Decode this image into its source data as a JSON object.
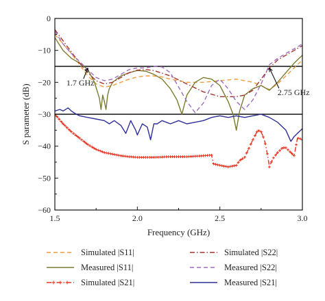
{
  "chart_data": {
    "type": "line",
    "xlabel": "Frequency (GHz)",
    "ylabel": "S parameter (dB)",
    "xlim": [
      1.5,
      3.0
    ],
    "ylim": [
      -60,
      0
    ],
    "xticks": [
      1.5,
      2.0,
      2.5,
      3.0
    ],
    "xtick_labels": [
      "1.5",
      "2.0",
      "2.5",
      "3.0"
    ],
    "yticks": [
      0,
      -10,
      -20,
      -30,
      -40,
      -50,
      -60
    ],
    "ytick_labels": [
      "0",
      "−10",
      "−20",
      "−30",
      "−40",
      "−50",
      "−60"
    ],
    "grid": false,
    "legend_position": "bottom",
    "reference_lines": [
      -15,
      -30
    ],
    "annotations": [
      {
        "text": "1.7 GHz",
        "x": 1.7,
        "y": -15.5,
        "text_x": 1.57,
        "text_y": -21
      },
      {
        "text": "2.75 GHz",
        "x": 2.8,
        "y": -15.5,
        "text_x": 2.85,
        "text_y": -24
      }
    ],
    "series": [
      {
        "name": "Simulated |S11|",
        "color": "#f39a3a",
        "dash": "dashed",
        "marker": "none",
        "x": [
          1.5,
          1.55,
          1.6,
          1.65,
          1.7,
          1.75,
          1.8,
          1.85,
          1.9,
          1.95,
          2.0,
          2.05,
          2.1,
          2.15,
          2.2,
          2.3,
          2.4,
          2.5,
          2.6,
          2.7,
          2.75,
          2.8,
          2.85,
          2.9,
          2.95,
          3.0
        ],
        "y": [
          -5,
          -8,
          -11,
          -14.5,
          -18,
          -20.5,
          -21.5,
          -21,
          -20,
          -19,
          -18.3,
          -18,
          -18,
          -18.3,
          -19,
          -20,
          -20,
          -19.5,
          -19,
          -20,
          -21,
          -22.3,
          -20.5,
          -18,
          -15.5,
          -13
        ]
      },
      {
        "name": "Measured |S11|",
        "color": "#7a7a2e",
        "dash": "solid",
        "marker": "none",
        "x": [
          1.5,
          1.55,
          1.6,
          1.65,
          1.7,
          1.74,
          1.77,
          1.78,
          1.79,
          1.8,
          1.81,
          1.82,
          1.83,
          1.85,
          1.9,
          1.95,
          2.0,
          2.05,
          2.1,
          2.15,
          2.2,
          2.24,
          2.27,
          2.28,
          2.3,
          2.35,
          2.4,
          2.45,
          2.5,
          2.55,
          2.58,
          2.6,
          2.62,
          2.65,
          2.7,
          2.75,
          2.8,
          2.85,
          2.9,
          2.95,
          3.0
        ],
        "y": [
          -6,
          -10,
          -12.5,
          -14,
          -16,
          -20,
          -25,
          -28.5,
          -24,
          -26,
          -28.5,
          -24,
          -22,
          -20,
          -18,
          -17,
          -16.3,
          -16.5,
          -17.5,
          -19,
          -22,
          -25.5,
          -30,
          -28,
          -24,
          -20,
          -18.5,
          -19,
          -21,
          -26,
          -30,
          -35,
          -29,
          -24,
          -22,
          -21,
          -22.5,
          -20,
          -17,
          -14,
          -11.5
        ]
      },
      {
        "name": "Simulated |S21|",
        "color": "#e8321e",
        "dash": "dashdot",
        "marker": "plus",
        "x": [
          1.5,
          1.55,
          1.6,
          1.65,
          1.7,
          1.75,
          1.8,
          1.85,
          1.9,
          1.95,
          2.0,
          2.1,
          2.2,
          2.3,
          2.4,
          2.45,
          2.46,
          2.5,
          2.55,
          2.6,
          2.62,
          2.65,
          2.7,
          2.73,
          2.75,
          2.77,
          2.79,
          2.8,
          2.82,
          2.85,
          2.88,
          2.9,
          2.93,
          2.95,
          2.97,
          2.98,
          3.0
        ],
        "y": [
          -30,
          -33,
          -35.5,
          -37.5,
          -39.5,
          -41,
          -42,
          -42.5,
          -43,
          -43.3,
          -43.5,
          -43.5,
          -43.3,
          -43.3,
          -43,
          -42.8,
          -45.5,
          -46,
          -46.5,
          -46,
          -44.5,
          -43.5,
          -38,
          -35,
          -35.5,
          -38,
          -43,
          -46.5,
          -44,
          -42,
          -40.5,
          -40.5,
          -42,
          -43,
          -37.5,
          -37.5,
          -38
        ]
      },
      {
        "name": "Simulated |S22|",
        "color": "#a3322a",
        "dash": "dashdot",
        "marker": "none",
        "x": [
          1.5,
          1.55,
          1.6,
          1.65,
          1.7,
          1.75,
          1.8,
          1.85,
          1.9,
          1.95,
          2.0,
          2.05,
          2.1,
          2.2,
          2.3,
          2.4,
          2.5,
          2.6,
          2.65,
          2.7,
          2.75,
          2.8,
          2.85,
          2.9,
          2.95,
          3.0
        ],
        "y": [
          -3.5,
          -7,
          -10.5,
          -14,
          -17,
          -19.5,
          -20.5,
          -20,
          -18.5,
          -17,
          -16.2,
          -16,
          -16.3,
          -18,
          -20.5,
          -23,
          -24.5,
          -24.5,
          -24,
          -22.5,
          -19,
          -15.5,
          -13,
          -11.5,
          -10,
          -8.5
        ]
      },
      {
        "name": "Measured |S22|",
        "color": "#9b6bbf",
        "dash": "dashed",
        "marker": "none",
        "x": [
          1.5,
          1.55,
          1.6,
          1.65,
          1.7,
          1.75,
          1.8,
          1.85,
          1.9,
          1.95,
          2.0,
          2.05,
          2.1,
          2.15,
          2.2,
          2.25,
          2.3,
          2.35,
          2.4,
          2.45,
          2.5,
          2.55,
          2.6,
          2.65,
          2.7,
          2.75,
          2.8,
          2.85,
          2.9,
          2.95,
          3.0
        ],
        "y": [
          -4,
          -8,
          -11,
          -13.5,
          -16,
          -18.5,
          -19.5,
          -19,
          -17.5,
          -16,
          -15.5,
          -15.5,
          -15,
          -15.2,
          -17,
          -21.5,
          -26,
          -29.5,
          -26.5,
          -21,
          -19,
          -22,
          -26,
          -28.5,
          -25.5,
          -20.5,
          -14.5,
          -12.5,
          -11,
          -9.5,
          -8
        ]
      },
      {
        "name": "Measured |S21|",
        "color": "#2e2e9a",
        "dash": "solid",
        "marker": "none",
        "x": [
          1.5,
          1.53,
          1.55,
          1.58,
          1.6,
          1.63,
          1.65,
          1.7,
          1.75,
          1.8,
          1.83,
          1.86,
          1.9,
          1.93,
          1.96,
          1.99,
          2.0,
          2.03,
          2.06,
          2.08,
          2.1,
          2.12,
          2.15,
          2.2,
          2.25,
          2.3,
          2.35,
          2.4,
          2.45,
          2.5,
          2.55,
          2.6,
          2.65,
          2.7,
          2.75,
          2.8,
          2.85,
          2.9,
          2.93,
          2.95,
          2.97,
          3.0
        ],
        "y": [
          -29,
          -28.5,
          -29,
          -28,
          -29,
          -30,
          -30.5,
          -31,
          -31.5,
          -32,
          -33,
          -32,
          -33.5,
          -36,
          -32,
          -35,
          -36.5,
          -33,
          -34,
          -38,
          -33,
          -33,
          -32,
          -33,
          -32,
          -33,
          -32.5,
          -32,
          -31,
          -30.5,
          -31,
          -30.5,
          -31,
          -30.5,
          -30,
          -31,
          -32.5,
          -35,
          -38.5,
          -37,
          -36,
          -34.5
        ]
      }
    ]
  }
}
